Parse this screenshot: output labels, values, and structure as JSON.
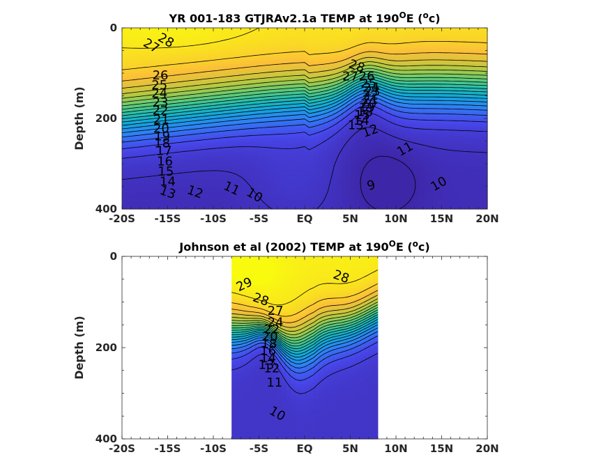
{
  "chart_data": [
    {
      "type": "heatmap",
      "title_prefix": "YR 001-183 GTJRAv2.1a TEMP at 190",
      "title_sup1": "O",
      "title_mid": "E (",
      "title_sup2": "o",
      "title_end": "c)",
      "ylabel": "Depth (m)",
      "xlabel": "",
      "xlim": [
        -20,
        20
      ],
      "ylim": [
        0,
        400
      ],
      "y_reversed": true,
      "x_ticks": [
        -20,
        -15,
        -10,
        -5,
        0,
        5,
        10,
        15,
        20
      ],
      "x_ticklabels": [
        "-20S",
        "-15S",
        "-10S",
        "-5S",
        "EQ",
        "5N",
        "10N",
        "15N",
        "20N"
      ],
      "y_ticks": [
        0,
        200,
        400
      ],
      "y_ticklabels": [
        "0",
        "200",
        "400"
      ],
      "colormap": "parula",
      "color_range": [
        8,
        30
      ],
      "data_lat_range": [
        -20,
        20
      ],
      "contour_labels": [
        {
          "text": "28",
          "lat": -15.2,
          "depth": 28,
          "angle": 30
        },
        {
          "text": "27",
          "lat": -16.8,
          "depth": 40,
          "angle": 30
        },
        {
          "text": "26",
          "lat": -15.8,
          "depth": 105,
          "angle": 0
        },
        {
          "text": "25",
          "lat": -15.9,
          "depth": 127,
          "angle": 0
        },
        {
          "text": "24",
          "lat": -15.9,
          "depth": 145,
          "angle": 0
        },
        {
          "text": "23",
          "lat": -15.8,
          "depth": 165,
          "angle": 0
        },
        {
          "text": "22",
          "lat": -15.8,
          "depth": 183,
          "angle": 0
        },
        {
          "text": "21",
          "lat": -15.7,
          "depth": 203,
          "angle": 0
        },
        {
          "text": "20",
          "lat": -15.7,
          "depth": 223,
          "angle": 0
        },
        {
          "text": "19",
          "lat": -15.6,
          "depth": 240,
          "angle": 0
        },
        {
          "text": "18",
          "lat": -15.6,
          "depth": 255,
          "angle": 0
        },
        {
          "text": "17",
          "lat": -15.4,
          "depth": 272,
          "angle": 0
        },
        {
          "text": "16",
          "lat": -15.3,
          "depth": 295,
          "angle": 0
        },
        {
          "text": "15",
          "lat": -15.2,
          "depth": 318,
          "angle": 0
        },
        {
          "text": "14",
          "lat": -15.0,
          "depth": 340,
          "angle": 0
        },
        {
          "text": "13",
          "lat": -15.0,
          "depth": 364,
          "angle": 20
        },
        {
          "text": "12",
          "lat": -12.0,
          "depth": 363,
          "angle": 20
        },
        {
          "text": "11",
          "lat": -8.0,
          "depth": 355,
          "angle": 25
        },
        {
          "text": "10",
          "lat": -5.5,
          "depth": 370,
          "angle": 30
        },
        {
          "text": "9",
          "lat": 7.3,
          "depth": 348,
          "angle": -20
        },
        {
          "text": "28",
          "lat": 5.7,
          "depth": 85,
          "angle": 20
        },
        {
          "text": "27",
          "lat": 5.0,
          "depth": 108,
          "angle": 0
        },
        {
          "text": "26",
          "lat": 6.8,
          "depth": 108,
          "angle": 0
        },
        {
          "text": "25",
          "lat": 7.0,
          "depth": 123,
          "angle": 0
        },
        {
          "text": "24",
          "lat": 7.3,
          "depth": 132,
          "angle": 0
        },
        {
          "text": "23",
          "lat": 7.4,
          "depth": 141,
          "angle": 0
        },
        {
          "text": "22",
          "lat": 7.2,
          "depth": 150,
          "angle": 0
        },
        {
          "text": "21",
          "lat": 7.2,
          "depth": 159,
          "angle": 0
        },
        {
          "text": "20",
          "lat": 7.0,
          "depth": 168,
          "angle": 0
        },
        {
          "text": "19",
          "lat": 6.8,
          "depth": 177,
          "angle": 0
        },
        {
          "text": "18",
          "lat": 6.6,
          "depth": 186,
          "angle": 0
        },
        {
          "text": "15",
          "lat": 6.3,
          "depth": 193,
          "angle": 0
        },
        {
          "text": "14",
          "lat": 6.2,
          "depth": 205,
          "angle": 0
        },
        {
          "text": "13",
          "lat": 5.6,
          "depth": 215,
          "angle": 0
        },
        {
          "text": "12",
          "lat": 7.2,
          "depth": 228,
          "angle": -20
        },
        {
          "text": "11",
          "lat": 11.0,
          "depth": 268,
          "angle": -30
        },
        {
          "text": "10",
          "lat": 14.7,
          "depth": 345,
          "angle": -30
        }
      ]
    },
    {
      "type": "heatmap",
      "title_prefix": "Johnson et al (2002) TEMP at 190",
      "title_sup1": "O",
      "title_mid": "E (",
      "title_sup2": "o",
      "title_end": "c)",
      "ylabel": "Depth (m)",
      "xlabel": "",
      "xlim": [
        -20,
        20
      ],
      "ylim": [
        0,
        400
      ],
      "y_reversed": true,
      "x_ticks": [
        -20,
        -15,
        -10,
        -5,
        0,
        5,
        10,
        15,
        20
      ],
      "x_ticklabels": [
        "-20S",
        "-15S",
        "-10S",
        "-5S",
        "EQ",
        "5N",
        "10N",
        "15N",
        "20N"
      ],
      "y_ticks": [
        0,
        200,
        400
      ],
      "y_ticklabels": [
        "0",
        "200",
        "400"
      ],
      "colormap": "parula",
      "color_range": [
        8,
        30
      ],
      "data_lat_range": [
        -8,
        8
      ],
      "contour_labels": [
        {
          "text": "29",
          "lat": -6.6,
          "depth": 62,
          "angle": -25
        },
        {
          "text": "28",
          "lat": 4.0,
          "depth": 45,
          "angle": 20
        },
        {
          "text": "28",
          "lat": -4.8,
          "depth": 95,
          "angle": 20
        },
        {
          "text": "27",
          "lat": -3.2,
          "depth": 120,
          "angle": 0
        },
        {
          "text": "24",
          "lat": -3.2,
          "depth": 145,
          "angle": 0
        },
        {
          "text": "22",
          "lat": -3.6,
          "depth": 160,
          "angle": 0
        },
        {
          "text": "20",
          "lat": -3.8,
          "depth": 176,
          "angle": 0
        },
        {
          "text": "18",
          "lat": -3.9,
          "depth": 192,
          "angle": 0
        },
        {
          "text": "16",
          "lat": -4.0,
          "depth": 208,
          "angle": 0
        },
        {
          "text": "14",
          "lat": -4.0,
          "depth": 224,
          "angle": 0
        },
        {
          "text": "13",
          "lat": -4.2,
          "depth": 238,
          "angle": 0
        },
        {
          "text": "12",
          "lat": -3.6,
          "depth": 246,
          "angle": 0
        },
        {
          "text": "11",
          "lat": -3.3,
          "depth": 277,
          "angle": 0
        },
        {
          "text": "10",
          "lat": -3.0,
          "depth": 345,
          "angle": 30
        }
      ]
    }
  ]
}
